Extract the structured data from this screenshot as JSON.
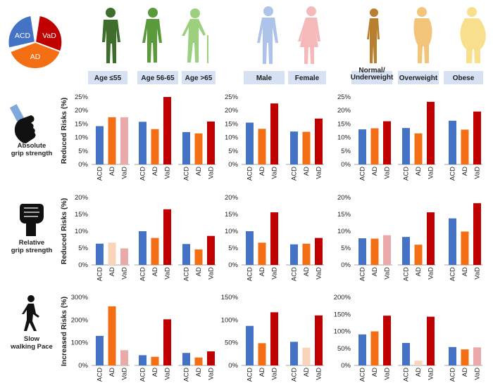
{
  "legend": {
    "segments": [
      {
        "label": "ACD",
        "color": "#4472C4"
      },
      {
        "label": "VaD",
        "color": "#C00000"
      },
      {
        "label": "AD",
        "color": "#F46E14"
      }
    ]
  },
  "colors": {
    "ACD": "#4472C4",
    "AD": "#F46E14",
    "VaD": "#C00000",
    "ACD_light": "#F6C5A3",
    "AD_light": "#FAD3BB",
    "VaD_light": "#EBAAAA",
    "header_bg": "#D6E1F3"
  },
  "groups": [
    {
      "label": "Age ≤55",
      "figure": "old-figure-dark",
      "figure_color": "#3F6E2C"
    },
    {
      "label": "Age 56-65",
      "figure": "person-green",
      "figure_color": "#5B9A3A"
    },
    {
      "label": "Age >65",
      "figure": "elderly-cane",
      "figure_color": "#9DD07E"
    },
    {
      "label": "Male",
      "figure": "male-silhouette",
      "figure_color": "#AEC3EA"
    },
    {
      "label": "Female",
      "figure": "female-silhouette",
      "figure_color": "#F5B9BC"
    },
    {
      "label": "Normal/\nUnderweight",
      "label_lines": [
        "Normal/",
        "Underweight"
      ],
      "figure": "slim-silhouette",
      "figure_color": "#B8802E"
    },
    {
      "label": "Overweight",
      "figure": "overweight-silhouette",
      "figure_color": "#F2C57A"
    },
    {
      "label": "Obese",
      "figure": "obese-silhouette",
      "figure_color": "#F8DF8E"
    }
  ],
  "rows": [
    {
      "label_lines": [
        "Absolute",
        "grip strength"
      ],
      "icon": "grip-icon",
      "ylabel": "Reduced Risks (%)"
    },
    {
      "label_lines": [
        "Relative",
        "grip strength"
      ],
      "icon": "fist-icon",
      "ylabel": "Reduced Risks (%)"
    },
    {
      "label_lines": [
        "Slow",
        "walking Pace"
      ],
      "icon": "walking-icon",
      "ylabel": "Increased  Risks (%)"
    }
  ],
  "chart_data": [
    {
      "type": "bar",
      "row": "Absolute grip strength",
      "ylabel": "Reduced Risks (%)",
      "x_categories": [
        "ACD",
        "AD",
        "VaD"
      ],
      "panels": [
        {
          "group": "Age",
          "ylim": [
            0,
            25
          ],
          "ticks": [
            "0%",
            "5%",
            "10%",
            "15%",
            "20%",
            "25%"
          ],
          "subgroups": [
            {
              "name": "Age ≤55",
              "values": [
                14.2,
                17.5,
                17.5
              ],
              "faded": [
                false,
                false,
                true
              ]
            },
            {
              "name": "Age 56-65",
              "values": [
                15.8,
                13.1,
                25.0
              ],
              "faded": [
                false,
                false,
                false
              ]
            },
            {
              "name": "Age >65",
              "values": [
                12.0,
                11.5,
                15.9
              ],
              "faded": [
                false,
                false,
                false
              ]
            }
          ]
        },
        {
          "group": "Sex",
          "ylim": [
            0,
            25
          ],
          "ticks": [
            "0%",
            "5%",
            "10%",
            "15%",
            "20%",
            "25%"
          ],
          "subgroups": [
            {
              "name": "Male",
              "values": [
                15.5,
                13.2,
                22.6
              ],
              "faded": [
                false,
                false,
                false
              ]
            },
            {
              "name": "Female",
              "values": [
                12.2,
                12.1,
                17.0
              ],
              "faded": [
                false,
                false,
                false
              ]
            }
          ]
        },
        {
          "group": "BMI",
          "ylim": [
            0,
            25
          ],
          "ticks": [
            "0%",
            "5%",
            "10%",
            "15%",
            "20%",
            "25%"
          ],
          "subgroups": [
            {
              "name": "Normal/Underweight",
              "values": [
                13.0,
                13.4,
                16.0
              ],
              "faded": [
                false,
                false,
                false
              ]
            },
            {
              "name": "Overweight",
              "values": [
                13.5,
                11.5,
                23.2
              ],
              "faded": [
                false,
                false,
                false
              ]
            },
            {
              "name": "Obese",
              "values": [
                16.2,
                12.9,
                19.6
              ],
              "faded": [
                false,
                false,
                false
              ]
            }
          ]
        }
      ]
    },
    {
      "type": "bar",
      "row": "Relative grip strength",
      "ylabel": "Reduced Risks (%)",
      "x_categories": [
        "ACD",
        "AD",
        "VaD"
      ],
      "panels": [
        {
          "group": "Age",
          "ylim": [
            0,
            20
          ],
          "ticks": [
            "0%",
            "5%",
            "10%",
            "15%",
            "20%"
          ],
          "subgroups": [
            {
              "name": "Age ≤55",
              "values": [
                6.3,
                6.6,
                4.9
              ],
              "faded": [
                false,
                true,
                true
              ]
            },
            {
              "name": "Age 56-65",
              "values": [
                10.0,
                8.0,
                16.5
              ],
              "faded": [
                false,
                false,
                false
              ]
            },
            {
              "name": "Age >65",
              "values": [
                6.2,
                4.6,
                8.6
              ],
              "faded": [
                false,
                false,
                false
              ]
            }
          ]
        },
        {
          "group": "Sex",
          "ylim": [
            0,
            20
          ],
          "ticks": [
            "0%",
            "5%",
            "10%",
            "15%",
            "20%"
          ],
          "subgroups": [
            {
              "name": "Male",
              "values": [
                10.0,
                6.6,
                15.6
              ],
              "faded": [
                false,
                false,
                false
              ]
            },
            {
              "name": "Female",
              "values": [
                6.1,
                6.3,
                8.0
              ],
              "faded": [
                false,
                false,
                false
              ]
            }
          ]
        },
        {
          "group": "BMI",
          "ylim": [
            0,
            20
          ],
          "ticks": [
            "0%",
            "5%",
            "10%",
            "15%",
            "20%"
          ],
          "subgroups": [
            {
              "name": "Normal/Underweight",
              "values": [
                7.9,
                7.8,
                8.8
              ],
              "faded": [
                false,
                false,
                true
              ]
            },
            {
              "name": "Overweight",
              "values": [
                8.3,
                6.0,
                15.6
              ],
              "faded": [
                false,
                false,
                false
              ]
            },
            {
              "name": "Obese",
              "values": [
                13.8,
                9.9,
                18.3
              ],
              "faded": [
                false,
                false,
                false
              ]
            }
          ]
        }
      ]
    },
    {
      "type": "bar",
      "row": "Slow walking Pace",
      "ylabel": "Increased  Risks (%)",
      "x_categories": [
        "ACD",
        "AD",
        "VaD"
      ],
      "panels": [
        {
          "group": "Age",
          "ylim": [
            0,
            300
          ],
          "ticks": [
            "0%",
            "100%",
            "200%",
            "300%"
          ],
          "subgroups": [
            {
              "name": "Age ≤55",
              "values": [
                130,
                260,
                67
              ],
              "faded": [
                false,
                false,
                true
              ]
            },
            {
              "name": "Age 56-65",
              "values": [
                45,
                38,
                203
              ],
              "faded": [
                false,
                false,
                false
              ]
            },
            {
              "name": "Age >65",
              "values": [
                55,
                35,
                62
              ],
              "faded": [
                false,
                false,
                false
              ]
            }
          ]
        },
        {
          "group": "Sex",
          "ylim": [
            0,
            150
          ],
          "ticks": [
            "0%",
            "50%",
            "100%",
            "150%"
          ],
          "subgroups": [
            {
              "name": "Male",
              "values": [
                87,
                49,
                117
              ],
              "faded": [
                false,
                false,
                false
              ]
            },
            {
              "name": "Female",
              "values": [
                52,
                39,
                110
              ],
              "faded": [
                false,
                true,
                false
              ]
            }
          ]
        },
        {
          "group": "BMI",
          "ylim": [
            0,
            200
          ],
          "ticks": [
            "0%",
            "50%",
            "100%",
            "150%",
            "200%"
          ],
          "subgroups": [
            {
              "name": "Normal/Underweight",
              "values": [
                91,
                100,
                146
              ],
              "faded": [
                false,
                false,
                false
              ]
            },
            {
              "name": "Overweight",
              "values": [
                66,
                14,
                143
              ],
              "faded": [
                false,
                true,
                false
              ]
            },
            {
              "name": "Obese",
              "values": [
                54,
                47,
                53
              ],
              "faded": [
                false,
                false,
                true
              ]
            }
          ]
        }
      ]
    }
  ]
}
